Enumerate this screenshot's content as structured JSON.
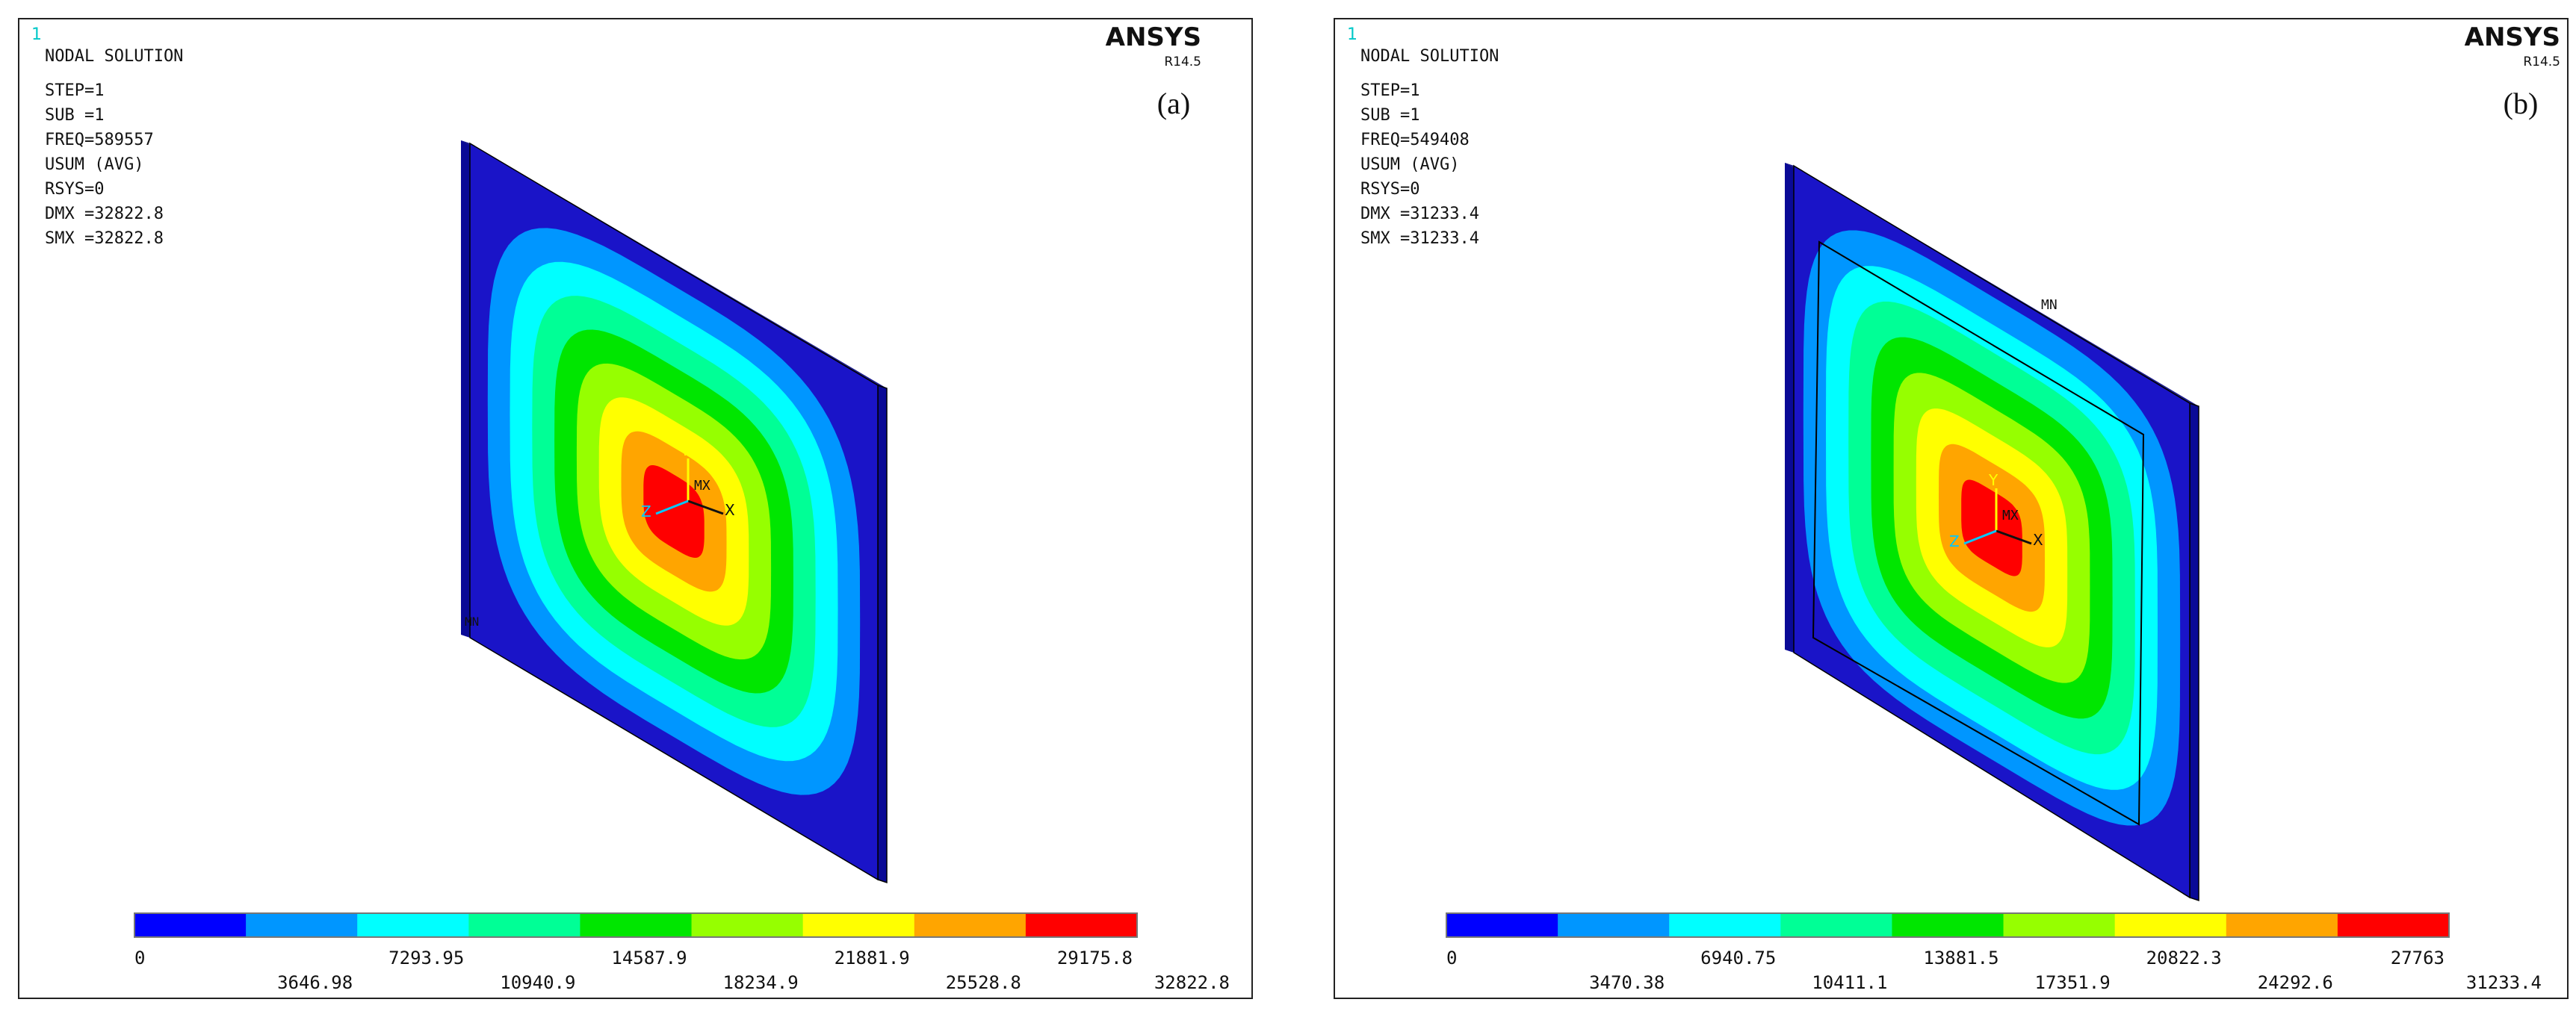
{
  "panels": [
    {
      "id": "a",
      "window_number": "1",
      "logo": "ANSYS",
      "version": "R14.5",
      "panel_label": "(a)",
      "header": "NODAL SOLUTION",
      "info": [
        "STEP=1",
        "SUB =1",
        "FREQ=589557",
        "USUM      (AVG)",
        "RSYS=0",
        "DMX =32822.8",
        "SMX =32822.8"
      ],
      "mesh_labels": {
        "max": "MX",
        "min": "MN"
      },
      "triad": {
        "x": "X",
        "y": "Y",
        "z": "Z"
      },
      "legend_top": [
        "0",
        "7293.95",
        "14587.9",
        "21881.9",
        "29175.8"
      ],
      "legend_bottom": [
        "3646.98",
        "10940.9",
        "18234.9",
        "25528.8",
        "32822.8"
      ]
    },
    {
      "id": "b",
      "window_number": "1",
      "logo": "ANSYS",
      "version": "R14.5",
      "panel_label": "(b)",
      "header": "NODAL SOLUTION",
      "info": [
        "STEP=1",
        "SUB =1",
        "FREQ=549408",
        "USUM      (AVG)",
        "RSYS=0",
        "DMX =31233.4",
        "SMX =31233.4"
      ],
      "mesh_labels": {
        "max": "MX",
        "min": "MN"
      },
      "triad": {
        "x": "X",
        "y": "Y",
        "z": "Z"
      },
      "legend_top": [
        "0",
        "6940.75",
        "13881.5",
        "20822.3",
        "27763"
      ],
      "legend_bottom": [
        "3470.38",
        "10411.1",
        "17351.9",
        "24292.6",
        "31233.4"
      ]
    }
  ],
  "contour_colors": [
    "#0000ff",
    "#0096ff",
    "#00ffff",
    "#00ff96",
    "#00e600",
    "#96ff00",
    "#ffff00",
    "#ffa500",
    "#ff0000"
  ],
  "plate_colors": {
    "front": "#1a14c8",
    "side": "#0a0a96",
    "top": "#1e1e8c",
    "edge": "#000000"
  }
}
